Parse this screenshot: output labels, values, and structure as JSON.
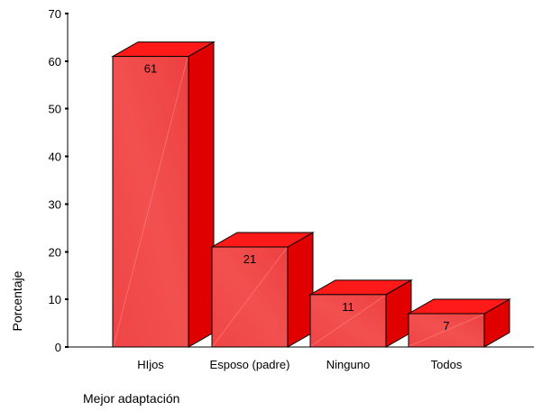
{
  "chart_data": {
    "type": "bar",
    "categories": [
      "HIjos",
      "Esposo (padre)",
      "Ninguno",
      "Todos"
    ],
    "values": [
      61,
      21,
      11,
      7
    ],
    "data_labels": [
      "61",
      "21",
      "11",
      "7"
    ],
    "title": "",
    "xlabel": "Mejor adaptación",
    "ylabel": "Porcentaje",
    "ylim": [
      0,
      70
    ],
    "yticks": [
      0,
      10,
      20,
      30,
      40,
      50,
      60,
      70
    ],
    "grid": false,
    "style": "3d",
    "colors": {
      "front": "#f04545",
      "front_highlight": "#ff7a7a",
      "top": "#ff1a1a",
      "side": "#e00000",
      "axis": "#000000"
    }
  }
}
